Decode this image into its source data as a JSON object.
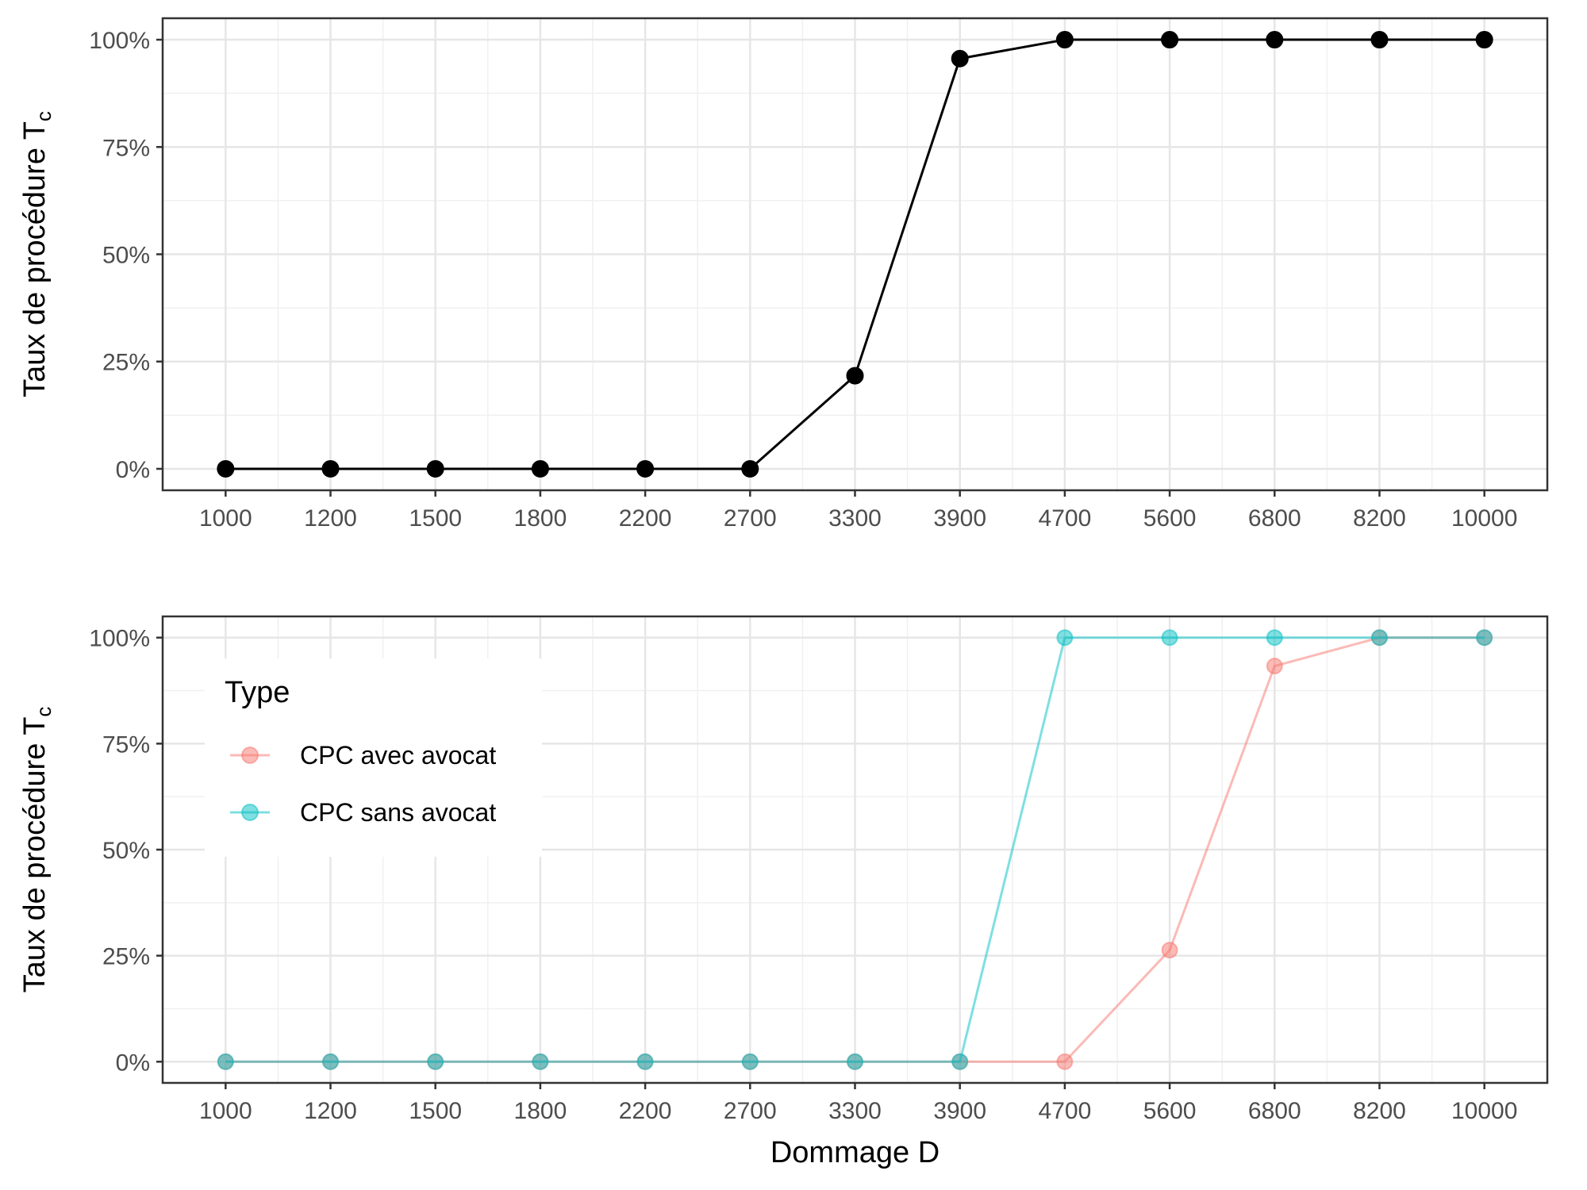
{
  "chart_data": [
    {
      "type": "line",
      "scale_note": "x axis is categorical (evenly spaced levels on a log-like scale)",
      "x": [
        1000,
        1200,
        1500,
        1800,
        2200,
        2700,
        3300,
        3900,
        4700,
        5600,
        6800,
        8200,
        10000
      ],
      "x_tick_labels": [
        "1000",
        "1200",
        "1500",
        "1800",
        "2200",
        "2700",
        "3300",
        "3900",
        "4700",
        "5600",
        "6800",
        "8200",
        "10000"
      ],
      "series": [
        {
          "color": "#000000",
          "values": [
            0,
            0,
            0,
            0,
            0,
            0,
            21.7,
            95.6,
            100,
            100,
            100,
            100,
            100
          ]
        }
      ],
      "ylabel": "Taux de procédure T",
      "ylabel_subscript": "c",
      "xlabel": "",
      "ylim": [
        -5,
        105
      ],
      "y_ticks": [
        0,
        25,
        50,
        75,
        100
      ],
      "y_tick_labels": [
        "0%",
        "25%",
        "50%",
        "75%",
        "100%"
      ],
      "grid": true
    },
    {
      "type": "line",
      "x": [
        1000,
        1200,
        1500,
        1800,
        2200,
        2700,
        3300,
        3900,
        4700,
        5600,
        6800,
        8200,
        10000
      ],
      "x_tick_labels": [
        "1000",
        "1200",
        "1500",
        "1800",
        "2200",
        "2700",
        "3300",
        "3900",
        "4700",
        "5600",
        "6800",
        "8200",
        "10000"
      ],
      "series": [
        {
          "name": "CPC avec avocat",
          "color": "#F8766D",
          "values": [
            0,
            0,
            0,
            0,
            0,
            0,
            0,
            0,
            0,
            26.3,
            93.3,
            100,
            100
          ]
        },
        {
          "name": "CPC sans avocat",
          "color": "#00BFC4",
          "values": [
            0,
            0,
            0,
            0,
            0,
            0,
            0,
            0,
            100,
            100,
            100,
            100,
            100
          ]
        }
      ],
      "legend_title": "Type",
      "legend_position": "top-left (inside)",
      "ylabel": "Taux de procédure T",
      "ylabel_subscript": "c",
      "xlabel": "Dommage D",
      "ylim": [
        -5,
        105
      ],
      "y_ticks": [
        0,
        25,
        50,
        75,
        100
      ],
      "y_tick_labels": [
        "0%",
        "25%",
        "50%",
        "75%",
        "100%"
      ],
      "grid": true
    }
  ]
}
